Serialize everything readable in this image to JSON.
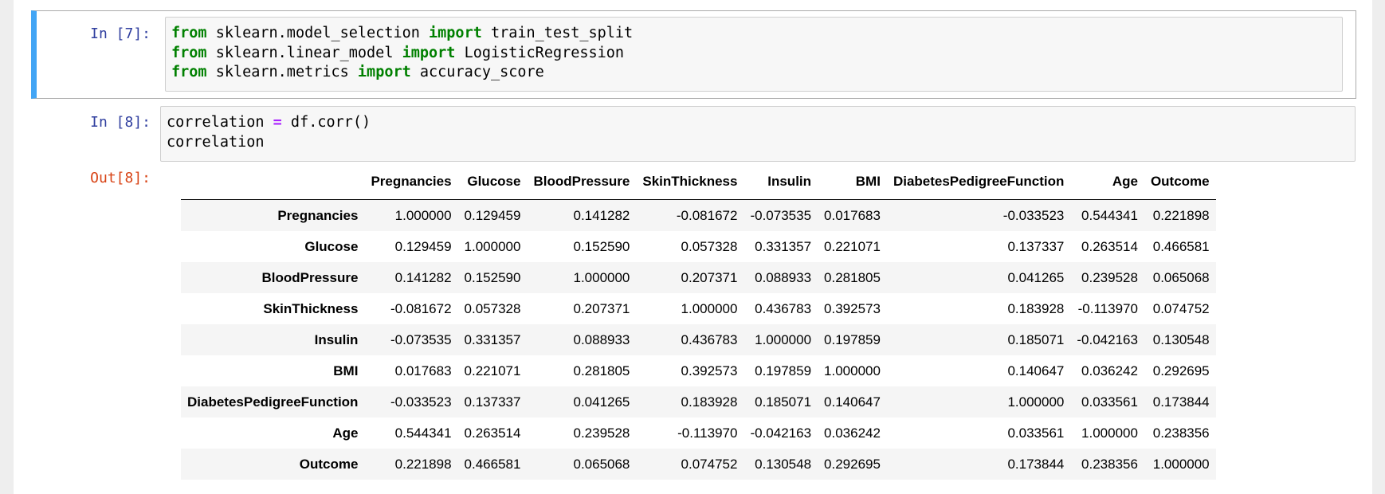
{
  "cells": [
    {
      "prompt": "In [7]:",
      "lines": [
        [
          {
            "t": "from",
            "k": "kw"
          },
          {
            "t": " sklearn.model_selection ",
            "k": ""
          },
          {
            "t": "import",
            "k": "kw"
          },
          {
            "t": " train_test_split",
            "k": ""
          }
        ],
        [
          {
            "t": "from",
            "k": "kw"
          },
          {
            "t": " sklearn.linear_model ",
            "k": ""
          },
          {
            "t": "import",
            "k": "kw"
          },
          {
            "t": " LogisticRegression",
            "k": ""
          }
        ],
        [
          {
            "t": "from",
            "k": "kw"
          },
          {
            "t": " sklearn.metrics ",
            "k": ""
          },
          {
            "t": "import",
            "k": "kw"
          },
          {
            "t": " accuracy_score",
            "k": ""
          }
        ]
      ]
    },
    {
      "prompt": "In [8]:",
      "lines": [
        [
          {
            "t": "correlation ",
            "k": ""
          },
          {
            "t": "=",
            "k": "op"
          },
          {
            "t": " df.corr()",
            "k": ""
          }
        ],
        [
          {
            "t": "correlation",
            "k": ""
          }
        ]
      ]
    }
  ],
  "output": {
    "prompt": "Out[8]:",
    "columns": [
      "",
      "Pregnancies",
      "Glucose",
      "BloodPressure",
      "SkinThickness",
      "Insulin",
      "BMI",
      "DiabetesPedigreeFunction",
      "Age",
      "Outcome"
    ],
    "rows": [
      {
        "label": "Pregnancies",
        "values": [
          "1.000000",
          "0.129459",
          "0.141282",
          "-0.081672",
          "-0.073535",
          "0.017683",
          "-0.033523",
          "0.544341",
          "0.221898"
        ]
      },
      {
        "label": "Glucose",
        "values": [
          "0.129459",
          "1.000000",
          "0.152590",
          "0.057328",
          "0.331357",
          "0.221071",
          "0.137337",
          "0.263514",
          "0.466581"
        ]
      },
      {
        "label": "BloodPressure",
        "values": [
          "0.141282",
          "0.152590",
          "1.000000",
          "0.207371",
          "0.088933",
          "0.281805",
          "0.041265",
          "0.239528",
          "0.065068"
        ]
      },
      {
        "label": "SkinThickness",
        "values": [
          "-0.081672",
          "0.057328",
          "0.207371",
          "1.000000",
          "0.436783",
          "0.392573",
          "0.183928",
          "-0.113970",
          "0.074752"
        ]
      },
      {
        "label": "Insulin",
        "values": [
          "-0.073535",
          "0.331357",
          "0.088933",
          "0.436783",
          "1.000000",
          "0.197859",
          "0.185071",
          "-0.042163",
          "0.130548"
        ]
      },
      {
        "label": "BMI",
        "values": [
          "0.017683",
          "0.221071",
          "0.281805",
          "0.392573",
          "0.197859",
          "1.000000",
          "0.140647",
          "0.036242",
          "0.292695"
        ]
      },
      {
        "label": "DiabetesPedigreeFunction",
        "values": [
          "-0.033523",
          "0.137337",
          "0.041265",
          "0.183928",
          "0.185071",
          "0.140647",
          "1.000000",
          "0.033561",
          "0.173844"
        ]
      },
      {
        "label": "Age",
        "values": [
          "0.544341",
          "0.263514",
          "0.239528",
          "-0.113970",
          "-0.042163",
          "0.036242",
          "0.033561",
          "1.000000",
          "0.238356"
        ]
      },
      {
        "label": "Outcome",
        "values": [
          "0.221898",
          "0.466581",
          "0.065068",
          "0.074752",
          "0.130548",
          "0.292695",
          "0.173844",
          "0.238356",
          "1.000000"
        ]
      }
    ]
  }
}
